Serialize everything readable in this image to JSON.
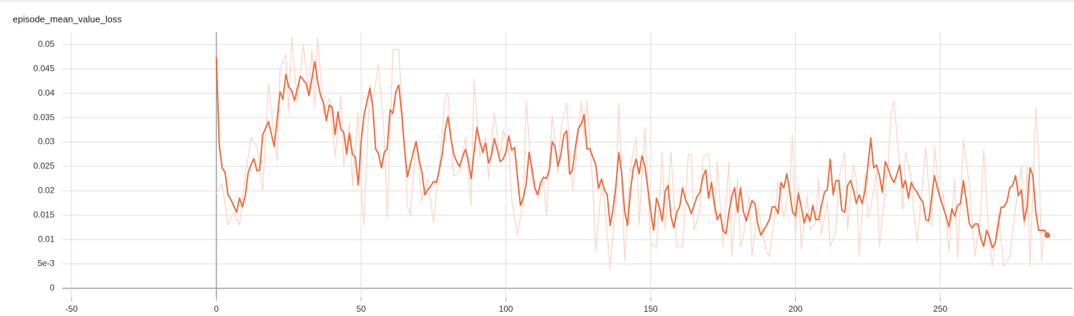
{
  "chart_data": {
    "type": "line",
    "title": "episode_mean_value_loss",
    "xlim": [
      -53.2,
      295.7
    ],
    "xticks": [
      -50,
      0,
      50,
      100,
      150,
      200,
      250
    ],
    "ylim": [
      -0.0019,
      0.0526
    ],
    "yticks": [
      0,
      {
        "value": 0.005,
        "label": "5e-3"
      },
      0.01,
      0.015,
      0.02,
      0.025,
      0.03,
      0.035,
      0.04,
      0.045,
      0.05
    ],
    "grid": true,
    "series": [
      {
        "color": "#fbd9cc",
        "x": [
          0,
          2,
          4,
          6,
          8,
          10,
          12,
          14,
          16,
          18,
          20,
          21,
          22,
          24,
          25,
          26,
          28,
          30,
          32,
          33,
          34,
          35,
          37,
          39,
          41,
          43,
          44,
          46,
          47,
          49,
          50,
          51,
          53,
          54,
          56,
          58,
          59,
          61,
          63,
          65,
          66,
          67,
          69,
          71,
          73,
          75,
          77,
          79,
          80,
          82,
          84,
          86,
          88,
          89,
          91,
          93,
          94,
          96,
          98,
          99,
          101,
          102,
          104,
          106,
          107,
          109,
          111,
          113,
          114,
          116,
          118,
          119,
          121,
          123,
          124,
          126,
          127,
          128,
          130,
          131,
          133,
          134,
          136,
          138,
          139,
          141,
          143,
          145,
          146,
          148,
          150,
          152,
          154,
          155,
          157,
          159,
          161,
          163,
          164,
          165,
          167,
          168,
          170,
          172,
          173,
          175,
          177,
          178,
          180,
          181,
          182,
          184,
          185,
          187,
          188,
          190,
          191,
          193,
          194,
          196,
          198,
          199,
          200,
          201,
          202,
          204,
          205,
          207,
          208,
          209,
          211,
          212,
          214,
          215,
          217,
          218,
          220,
          221,
          222,
          224,
          225,
          226,
          228,
          229,
          231,
          232,
          233,
          234,
          236,
          237,
          238,
          240,
          241,
          242,
          244,
          245,
          247,
          248,
          250,
          251,
          253,
          255,
          256,
          258,
          260,
          262,
          264,
          265,
          267,
          268,
          270,
          272,
          274,
          276,
          278,
          279,
          280,
          281,
          283,
          284,
          285,
          286
        ],
        "values": [
          0.0195,
          0.0215,
          0.013,
          0.0155,
          0.013,
          0.023,
          0.031,
          0.029,
          0.02,
          0.042,
          0.031,
          0.026,
          0.045,
          0.048,
          0.036,
          0.0515,
          0.038,
          0.05,
          0.04,
          0.049,
          0.037,
          0.0515,
          0.036,
          0.039,
          0.027,
          0.0395,
          0.025,
          0.034,
          0.021,
          0.036,
          0.021,
          0.013,
          0.042,
          0.038,
          0.046,
          0.031,
          0.0145,
          0.049,
          0.049,
          0.028,
          0.017,
          0.015,
          0.03,
          0.018,
          0.0225,
          0.0135,
          0.025,
          0.039,
          0.04,
          0.023,
          0.024,
          0.031,
          0.017,
          0.043,
          0.027,
          0.031,
          0.0225,
          0.036,
          0.027,
          0.0325,
          0.029,
          0.018,
          0.011,
          0.018,
          0.0385,
          0.022,
          0.0185,
          0.022,
          0.015,
          0.0355,
          0.0235,
          0.033,
          0.038,
          0.02,
          0.025,
          0.0385,
          0.031,
          0.0385,
          0.021,
          0.0075,
          0.021,
          0.018,
          0.004,
          0.019,
          0.038,
          0.0055,
          0.025,
          0.031,
          0.013,
          0.033,
          0.009,
          0.0085,
          0.028,
          0.012,
          0.028,
          0.0085,
          0.0085,
          0.0275,
          0.0275,
          0.012,
          0.016,
          0.027,
          0.0275,
          0.015,
          0.026,
          0.0085,
          0.026,
          0.0065,
          0.0225,
          0.0085,
          0.0105,
          0.019,
          0.0065,
          0.017,
          0.0135,
          0.0075,
          0.0065,
          0.016,
          0.022,
          0.0145,
          0.0215,
          0.0315,
          0.0105,
          0.021,
          0.008,
          0.019,
          0.012,
          0.0135,
          0.0225,
          0.011,
          0.018,
          0.0085,
          0.0115,
          0.0225,
          0.028,
          0.012,
          0.0255,
          0.0225,
          0.0065,
          0.0235,
          0.0145,
          0.0165,
          0.024,
          0.0085,
          0.0205,
          0.0255,
          0.036,
          0.0385,
          0.025,
          0.016,
          0.028,
          0.0225,
          0.0145,
          0.0095,
          0.022,
          0.029,
          0.0125,
          0.029,
          0.0175,
          0.0195,
          0.0075,
          0.0225,
          0.006,
          0.0305,
          0.0215,
          0.0065,
          0.0155,
          0.0285,
          0.0095,
          0.0045,
          0.0155,
          0.0045,
          0.0065,
          0.0165,
          0.025,
          0.0125,
          0.025,
          0.0045,
          0.037,
          0.028,
          0.0055,
          0.0115
        ]
      },
      {
        "color": "#ef6a3c",
        "x": [
          0,
          1,
          2,
          3,
          4,
          5,
          7,
          8,
          9,
          10,
          11,
          12,
          13,
          14,
          15,
          16,
          18,
          20,
          22,
          23,
          24,
          25,
          26,
          27,
          29,
          31,
          32,
          34,
          35,
          36,
          37,
          38,
          39,
          40,
          41,
          42,
          43,
          44,
          45,
          46,
          47,
          48,
          49,
          50,
          51,
          53,
          54,
          55,
          56,
          57,
          58,
          59,
          60,
          61,
          62,
          63,
          64,
          65,
          66,
          67,
          68,
          69,
          70,
          71,
          72,
          73,
          74,
          75,
          76,
          77,
          78,
          79,
          80,
          81,
          82,
          83,
          84,
          85,
          86,
          87,
          88,
          89,
          90,
          91,
          92,
          93,
          94,
          95,
          96,
          97,
          98,
          99,
          100,
          101,
          102,
          103,
          104,
          105,
          106,
          107,
          108,
          109,
          110,
          111,
          112,
          113,
          114,
          115,
          116,
          117,
          118,
          119,
          120,
          121,
          122,
          123,
          124,
          125,
          126,
          127,
          128,
          129,
          130,
          131,
          132,
          133,
          134,
          135,
          136,
          137,
          138,
          139,
          140,
          141,
          142,
          143,
          144,
          145,
          146,
          147,
          148,
          149,
          150,
          151,
          152,
          153,
          154,
          155,
          156,
          157,
          158,
          159,
          160,
          161,
          162,
          163,
          164,
          165,
          166,
          167,
          168,
          169,
          170,
          171,
          172,
          173,
          174,
          175,
          176,
          177,
          178,
          179,
          180,
          181,
          182,
          183,
          184,
          185,
          186,
          187,
          188,
          189,
          190,
          191,
          192,
          193,
          194,
          195,
          196,
          197,
          198,
          199,
          200,
          201,
          202,
          203,
          204,
          205,
          206,
          207,
          208,
          209,
          210,
          211,
          212,
          213,
          214,
          215,
          216,
          217,
          218,
          219,
          220,
          221,
          222,
          223,
          224,
          225,
          226,
          227,
          228,
          229,
          230,
          231,
          232,
          233,
          234,
          235,
          236,
          237,
          238,
          239,
          240,
          241,
          242,
          243,
          244,
          245,
          246,
          247,
          248,
          249,
          250,
          251,
          252,
          253,
          254,
          255,
          256,
          257,
          258,
          259,
          260,
          261,
          262,
          263,
          264,
          265,
          266,
          267,
          268,
          269,
          270,
          271,
          272,
          273,
          274,
          275,
          276,
          277,
          278,
          279,
          280,
          281,
          282,
          283,
          284,
          285,
          286,
          287
        ],
        "values": [
          0.0475,
          0.0294,
          0.0247,
          0.0238,
          0.0192,
          0.0182,
          0.0156,
          0.0185,
          0.0167,
          0.019,
          0.0238,
          0.0254,
          0.0266,
          0.0241,
          0.0243,
          0.0315,
          0.0342,
          0.0291,
          0.0403,
          0.0388,
          0.0439,
          0.0413,
          0.0406,
          0.0385,
          0.0435,
          0.042,
          0.0395,
          0.0465,
          0.0424,
          0.0395,
          0.0381,
          0.0344,
          0.0376,
          0.0371,
          0.0315,
          0.0362,
          0.0326,
          0.032,
          0.0276,
          0.0318,
          0.0275,
          0.0269,
          0.0212,
          0.0301,
          0.0355,
          0.041,
          0.0374,
          0.0286,
          0.0276,
          0.0247,
          0.0279,
          0.0286,
          0.0366,
          0.0359,
          0.0403,
          0.0417,
          0.0359,
          0.0286,
          0.0228,
          0.0254,
          0.0279,
          0.0301,
          0.0265,
          0.0238,
          0.0192,
          0.0202,
          0.0209,
          0.0219,
          0.0217,
          0.0243,
          0.0275,
          0.0323,
          0.0352,
          0.0308,
          0.0275,
          0.026,
          0.025,
          0.0269,
          0.0285,
          0.0262,
          0.0225,
          0.0279,
          0.033,
          0.0301,
          0.0279,
          0.0298,
          0.0257,
          0.0272,
          0.0307,
          0.0285,
          0.026,
          0.0265,
          0.0279,
          0.0313,
          0.0283,
          0.0289,
          0.0228,
          0.017,
          0.0185,
          0.0214,
          0.0279,
          0.0246,
          0.0206,
          0.0192,
          0.0217,
          0.0228,
          0.0225,
          0.0243,
          0.0301,
          0.0289,
          0.025,
          0.0275,
          0.0315,
          0.0323,
          0.0234,
          0.0243,
          0.0289,
          0.0327,
          0.0337,
          0.0356,
          0.0286,
          0.0286,
          0.0269,
          0.0254,
          0.0205,
          0.0224,
          0.0202,
          0.0192,
          0.0129,
          0.0163,
          0.0211,
          0.0278,
          0.0235,
          0.0158,
          0.0129,
          0.0199,
          0.0246,
          0.0265,
          0.0235,
          0.0272,
          0.025,
          0.0206,
          0.0158,
          0.0119,
          0.0185,
          0.0167,
          0.0138,
          0.0199,
          0.0211,
          0.0148,
          0.0124,
          0.0156,
          0.0167,
          0.0206,
          0.0182,
          0.017,
          0.0153,
          0.017,
          0.0188,
          0.0197,
          0.0228,
          0.0243,
          0.0185,
          0.0217,
          0.0173,
          0.0141,
          0.0153,
          0.0118,
          0.0112,
          0.0156,
          0.0188,
          0.0206,
          0.0156,
          0.0206,
          0.0158,
          0.0138,
          0.016,
          0.018,
          0.0173,
          0.0132,
          0.0109,
          0.0119,
          0.0129,
          0.0141,
          0.0167,
          0.0167,
          0.0153,
          0.0217,
          0.0206,
          0.0235,
          0.0199,
          0.0156,
          0.0148,
          0.0195,
          0.0167,
          0.0134,
          0.0153,
          0.0138,
          0.017,
          0.0141,
          0.0141,
          0.017,
          0.0197,
          0.0202,
          0.0265,
          0.0192,
          0.0221,
          0.0221,
          0.016,
          0.0156,
          0.0211,
          0.0221,
          0.0202,
          0.0174,
          0.0192,
          0.0174,
          0.0199,
          0.025,
          0.0308,
          0.0247,
          0.0253,
          0.0231,
          0.0197,
          0.026,
          0.0246,
          0.0228,
          0.0217,
          0.0233,
          0.0253,
          0.0206,
          0.0221,
          0.0185,
          0.0217,
          0.0205,
          0.0197,
          0.0185,
          0.0177,
          0.0141,
          0.0138,
          0.0185,
          0.0231,
          0.0206,
          0.0185,
          0.0166,
          0.0148,
          0.0126,
          0.0163,
          0.0148,
          0.017,
          0.0174,
          0.0221,
          0.018,
          0.0134,
          0.0124,
          0.0132,
          0.0132,
          0.0103,
          0.0086,
          0.0119,
          0.0105,
          0.0083,
          0.0093,
          0.0129,
          0.0166,
          0.0167,
          0.0177,
          0.0206,
          0.0211,
          0.0231,
          0.019,
          0.0202,
          0.0138,
          0.0167,
          0.0247,
          0.0231,
          0.0156,
          0.0119,
          0.0119,
          0.0119,
          0.0109
        ]
      }
    ]
  }
}
